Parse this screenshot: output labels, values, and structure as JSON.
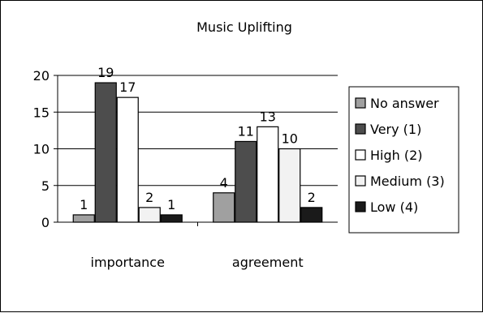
{
  "chart_data": {
    "type": "bar",
    "title": "Music Uplifting",
    "categories": [
      "importance",
      "agreement"
    ],
    "series": [
      {
        "name": "No answer",
        "values": [
          1,
          4
        ],
        "color": "#a0a0a0"
      },
      {
        "name": "Very (1)",
        "values": [
          19,
          11
        ],
        "color": "#4d4d4d"
      },
      {
        "name": "High (2)",
        "values": [
          17,
          13
        ],
        "color": "#ffffff"
      },
      {
        "name": "Medium (3)",
        "values": [
          2,
          10
        ],
        "color": "#f2f2f2"
      },
      {
        "name": "Low (4)",
        "values": [
          1,
          2
        ],
        "color": "#1a1a1a"
      }
    ],
    "ylim": [
      0,
      20
    ],
    "yticks": [
      0,
      5,
      10,
      15,
      20
    ],
    "grid": true,
    "legend": "right",
    "data_labels": true
  }
}
